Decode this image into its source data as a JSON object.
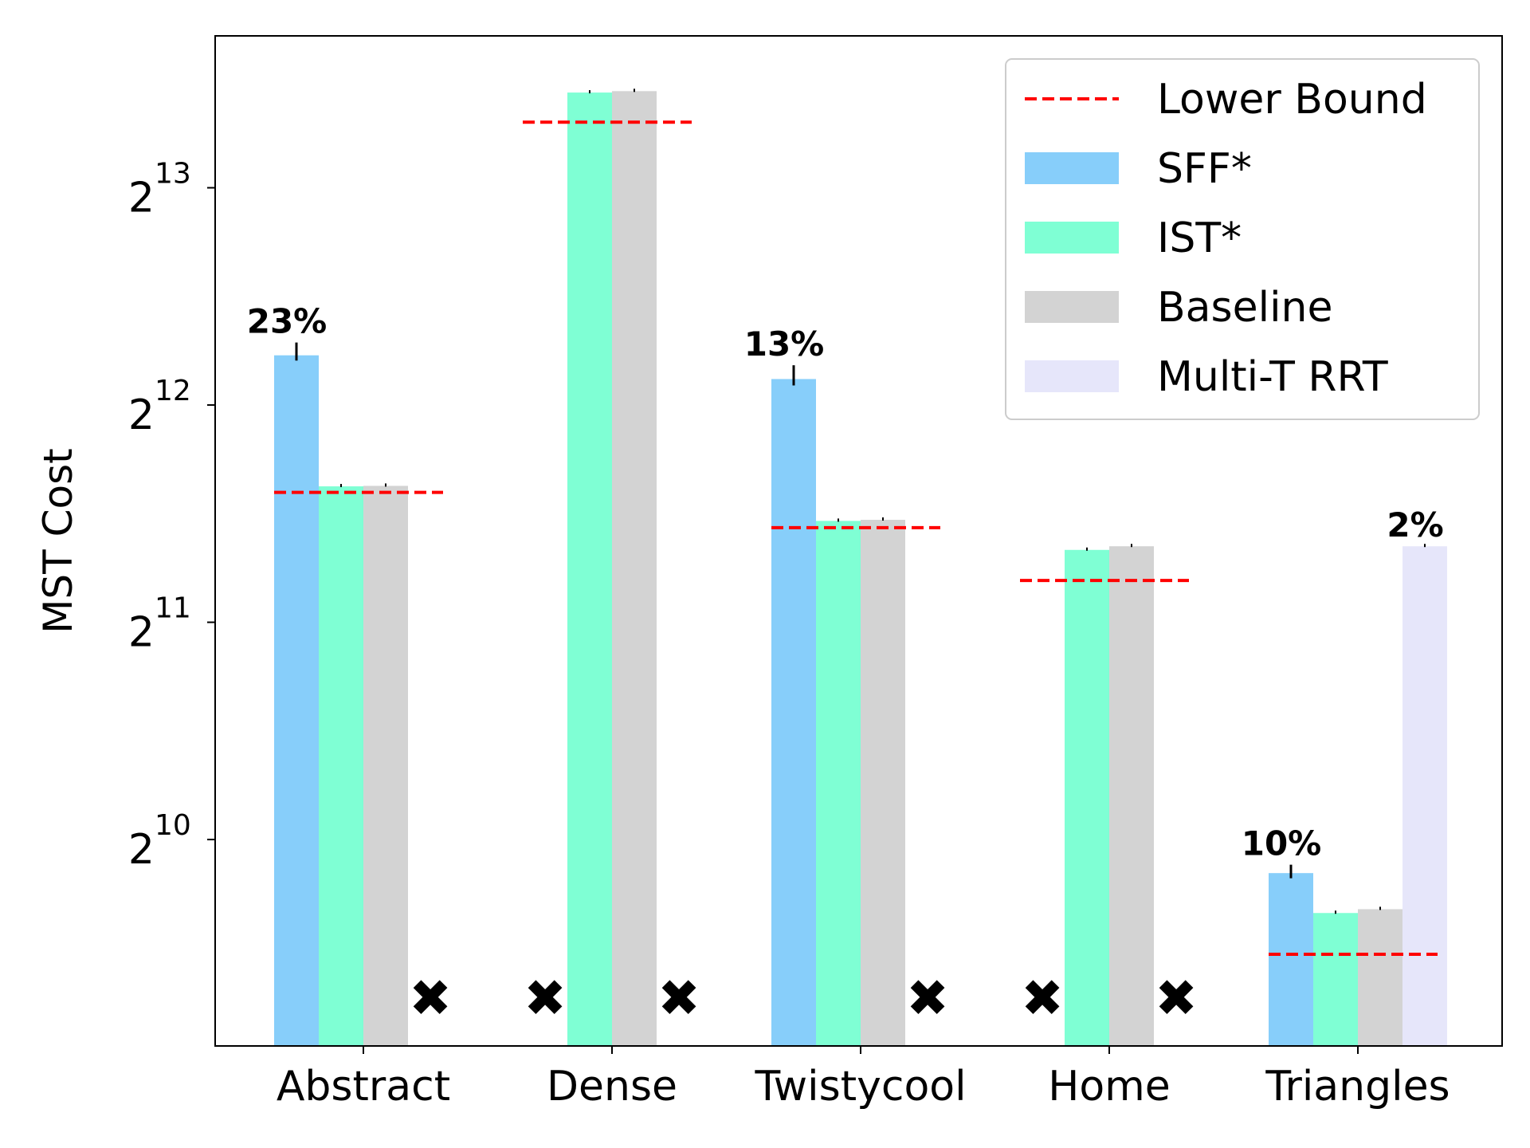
{
  "chart_data": {
    "type": "bar",
    "ylabel": "MST Cost",
    "yscale": "log2",
    "yticks": [
      {
        "base": "2",
        "exp": "10",
        "value": 1024
      },
      {
        "base": "2",
        "exp": "11",
        "value": 2048
      },
      {
        "base": "2",
        "exp": "12",
        "value": 4096
      },
      {
        "base": "2",
        "exp": "13",
        "value": 8192
      }
    ],
    "ylim": [
      530,
      13300
    ],
    "categories": [
      "Abstract",
      "Dense",
      "Twistycool",
      "Home",
      "Triangles"
    ],
    "series": [
      {
        "name": "SFF*",
        "color": "#87cefa",
        "values": [
          4800,
          null,
          4450,
          null,
          920
        ]
      },
      {
        "name": "IST*",
        "color": "#7fffd4",
        "values": [
          3160,
          11100,
          2830,
          2580,
          810
        ]
      },
      {
        "name": "Baseline",
        "color": "#d3d3d3",
        "values": [
          3165,
          11150,
          2840,
          2610,
          820
        ]
      },
      {
        "name": "Multi-T RRT",
        "color": "#e6e6fa",
        "values": [
          null,
          null,
          null,
          null,
          2610
        ]
      }
    ],
    "error_bars": [
      {
        "series": "SFF*",
        "category": "Abstract",
        "low": 4720,
        "high": 5000
      },
      {
        "series": "SFF*",
        "category": "Twistycool",
        "low": 4360,
        "high": 4650
      },
      {
        "series": "SFF*",
        "category": "Triangles",
        "low": 905,
        "high": 945
      }
    ],
    "lower_bound": {
      "name": "Lower Bound",
      "color": "#ff0000",
      "values": [
        3100,
        10100,
        2770,
        2340,
        710
      ]
    },
    "failure_marker": "✖",
    "failures": [
      {
        "series": "Multi-T RRT",
        "category": "Abstract"
      },
      {
        "series": "SFF*",
        "category": "Dense"
      },
      {
        "series": "Multi-T RRT",
        "category": "Dense"
      },
      {
        "series": "Multi-T RRT",
        "category": "Twistycool"
      },
      {
        "series": "SFF*",
        "category": "Home"
      },
      {
        "series": "Multi-T RRT",
        "category": "Home"
      }
    ],
    "annotations": [
      {
        "text": "23%",
        "series": "SFF*",
        "category": "Abstract"
      },
      {
        "text": "13%",
        "series": "SFF*",
        "category": "Twistycool"
      },
      {
        "text": "10%",
        "series": "SFF*",
        "category": "Triangles"
      },
      {
        "text": "2%",
        "series": "Multi-T RRT",
        "category": "Triangles"
      }
    ],
    "legend": {
      "position": "top-right",
      "entries": [
        "Lower Bound",
        "SFF*",
        "IST*",
        "Baseline",
        "Multi-T RRT"
      ]
    }
  }
}
